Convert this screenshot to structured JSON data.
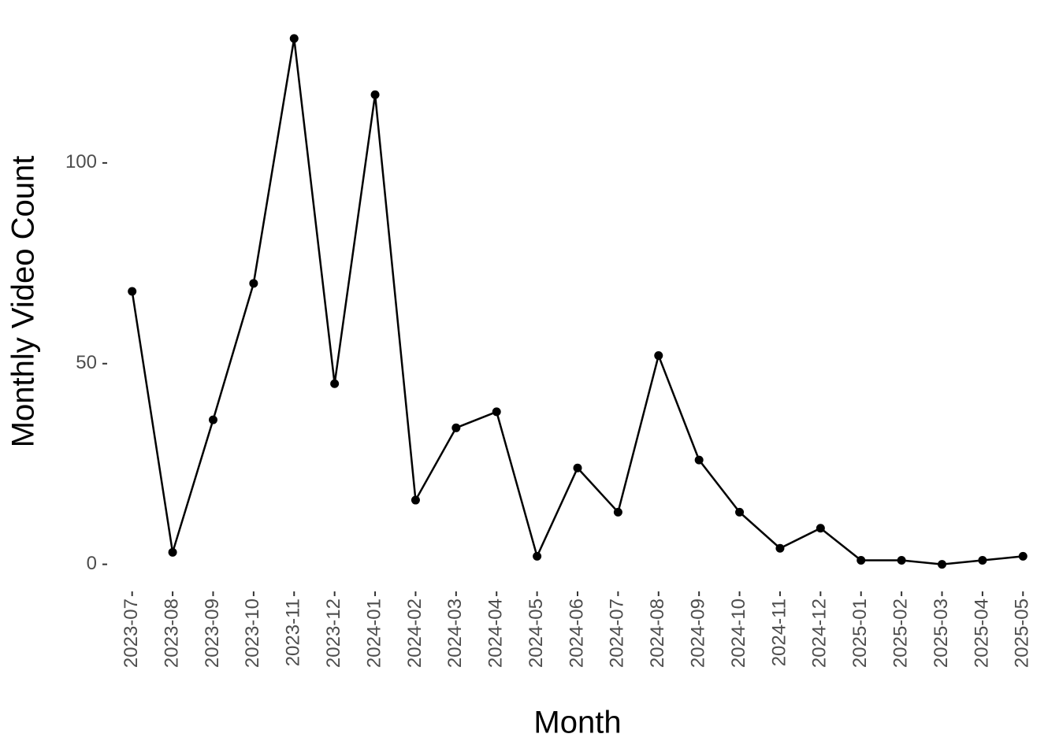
{
  "chart_data": {
    "type": "line",
    "x_label": "Month",
    "y_label": "Monthly Video Count",
    "categories": [
      "2023-07",
      "2023-08",
      "2023-09",
      "2023-10",
      "2023-11",
      "2023-12",
      "2024-01",
      "2024-02",
      "2024-03",
      "2024-04",
      "2024-05",
      "2024-06",
      "2024-07",
      "2024-08",
      "2024-09",
      "2024-10",
      "2024-11",
      "2024-12",
      "2025-01",
      "2025-02",
      "2025-03",
      "2025-04",
      "2025-05"
    ],
    "values": [
      68,
      3,
      36,
      70,
      131,
      45,
      117,
      16,
      34,
      38,
      2,
      24,
      13,
      52,
      26,
      13,
      4,
      9,
      1,
      1,
      0,
      1,
      2
    ],
    "color": "#000000",
    "ylim": [
      -6.55,
      137.55
    ],
    "yticks": [
      0,
      50,
      100
    ],
    "grid": false
  }
}
